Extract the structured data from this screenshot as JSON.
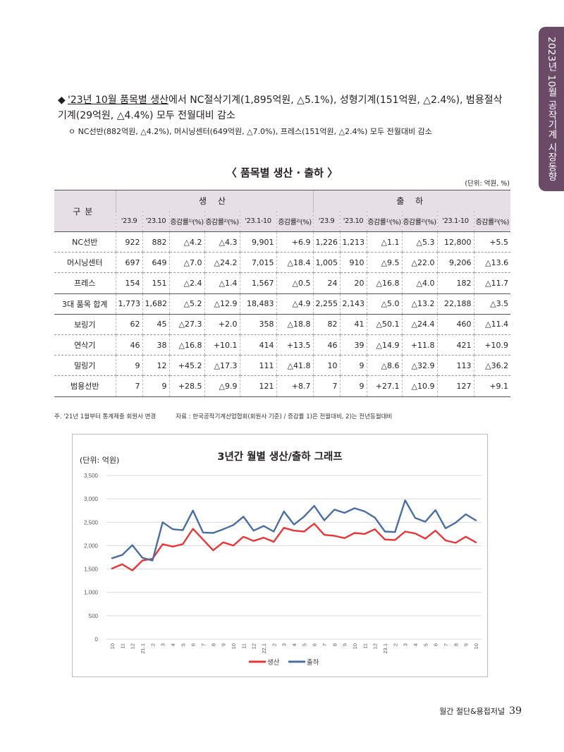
{
  "side_tab": "2023년 10월 공작기계 시장동향",
  "bullet": {
    "diamond": "◆",
    "highlight": "'23년 10월 품목별 생산",
    "rest": "에서 NC절삭기계(1,895억원, △5.1%), 성형기계(151억원, △2.4%), 범용절삭기계(29억원, △4.4%) 모두 전월대비 감소"
  },
  "sub_bullet": "ㅇ NC선반(882억원, △4.2%), 머시닝센터(649억원, △7.0%), 프레스(151억원, △2.4%) 모두 전월대비 감소",
  "table": {
    "title": "〈 품목별 생산 · 출하 〉",
    "unit": "(단위: 억원, %)",
    "row_header": "구분",
    "group_prod": "생 산",
    "group_ship": "출 하",
    "columns": [
      "'23.9",
      "'23.10",
      "증감률¹⁾(%)",
      "증감률²⁾(%)",
      "'23.1-10",
      "증감률²⁾(%)",
      "'23.9",
      "'23.10",
      "증감률¹⁾(%)",
      "증감률²⁾(%)",
      "'23.1-10",
      "증감률²⁾(%)"
    ],
    "rows": [
      {
        "label": "NC선반",
        "cells": [
          "922",
          "882",
          "△4.2",
          "△4.3",
          "9,901",
          "+6.9",
          "1,226",
          "1,213",
          "△1.1",
          "△5.3",
          "12,800",
          "+5.5"
        ]
      },
      {
        "label": "머시닝센터",
        "cells": [
          "697",
          "649",
          "△7.0",
          "△24.2",
          "7,015",
          "△18.4",
          "1,005",
          "910",
          "△9.5",
          "△22.0",
          "9,206",
          "△13.6"
        ]
      },
      {
        "label": "프레스",
        "cells": [
          "154",
          "151",
          "△2.4",
          "△1.4",
          "1,567",
          "△0.5",
          "24",
          "20",
          "△16.8",
          "△4.0",
          "182",
          "△11.7"
        ]
      },
      {
        "label": "3대 품목 합계",
        "cells": [
          "1,773",
          "1,682",
          "△5.2",
          "△12.9",
          "18,483",
          "△4.9",
          "2,255",
          "2,143",
          "△5.0",
          "△13.2",
          "22,188",
          "△3.5"
        ]
      },
      {
        "label": "보링기",
        "cells": [
          "62",
          "45",
          "△27.3",
          "+2.0",
          "358",
          "△18.8",
          "82",
          "41",
          "△50.1",
          "△24.4",
          "460",
          "△11.4"
        ]
      },
      {
        "label": "연삭기",
        "cells": [
          "46",
          "38",
          "△16.8",
          "+10.1",
          "414",
          "+13.5",
          "46",
          "39",
          "△14.9",
          "+11.8",
          "421",
          "+10.9"
        ]
      },
      {
        "label": "밀링기",
        "cells": [
          "9",
          "12",
          "+45.2",
          "△17.3",
          "111",
          "△41.8",
          "10",
          "9",
          "△8.6",
          "△32.9",
          "113",
          "△36.2"
        ]
      },
      {
        "label": "범용선반",
        "cells": [
          "7",
          "9",
          "+28.5",
          "△9.9",
          "121",
          "+8.7",
          "7",
          "9",
          "+27.1",
          "△10.9",
          "127",
          "+9.1"
        ]
      }
    ],
    "note": "주. '21년 1월부터 통계제출 회원사 변경",
    "source": "자료 : 한국공작기계산업협회(회원사 기준) / 증감률 1)은 전월대비, 2)는 전년동월대비"
  },
  "chart_data": {
    "type": "line",
    "title": "3년간 월별 생산/출하 그래프",
    "unit_label": "(단위: 억원)",
    "x": [
      "10",
      "11",
      "12",
      "21.1",
      "2",
      "3",
      "4",
      "5",
      "6",
      "7",
      "8",
      "9",
      "10",
      "11",
      "12",
      "22.1",
      "2",
      "3",
      "4",
      "5",
      "6",
      "7",
      "8",
      "9",
      "10",
      "11",
      "12",
      "23.1",
      "2",
      "3",
      "4",
      "5",
      "6",
      "7",
      "8",
      "9",
      "10"
    ],
    "ylim": [
      0,
      3500
    ],
    "yticks": [
      "0",
      "500",
      "1,000",
      "1,500",
      "2,000",
      "2,500",
      "3,000",
      "3,500"
    ],
    "grid": true,
    "legend_position": "bottom",
    "series": [
      {
        "name": "생산",
        "color": "#e8363a",
        "values": [
          1510,
          1600,
          1470,
          1680,
          1720,
          2030,
          1980,
          2030,
          2360,
          2130,
          1900,
          2070,
          2000,
          2190,
          2100,
          2170,
          2080,
          2380,
          2320,
          2300,
          2470,
          2230,
          2210,
          2160,
          2270,
          2250,
          2350,
          2130,
          2120,
          2300,
          2260,
          2150,
          2320,
          2110,
          2060,
          2190,
          2070
        ]
      },
      {
        "name": "출하",
        "color": "#4a6ea3",
        "values": [
          1730,
          1800,
          2010,
          1740,
          1680,
          2500,
          2350,
          2330,
          2750,
          2280,
          2270,
          2350,
          2440,
          2620,
          2320,
          2420,
          2300,
          2730,
          2450,
          2620,
          2850,
          2540,
          2770,
          2700,
          2800,
          2730,
          2600,
          2300,
          2290,
          2970,
          2590,
          2510,
          2760,
          2370,
          2490,
          2670,
          2540
        ]
      }
    ]
  },
  "footer": {
    "magazine": "월간 절단&용접저널",
    "page": "39"
  }
}
